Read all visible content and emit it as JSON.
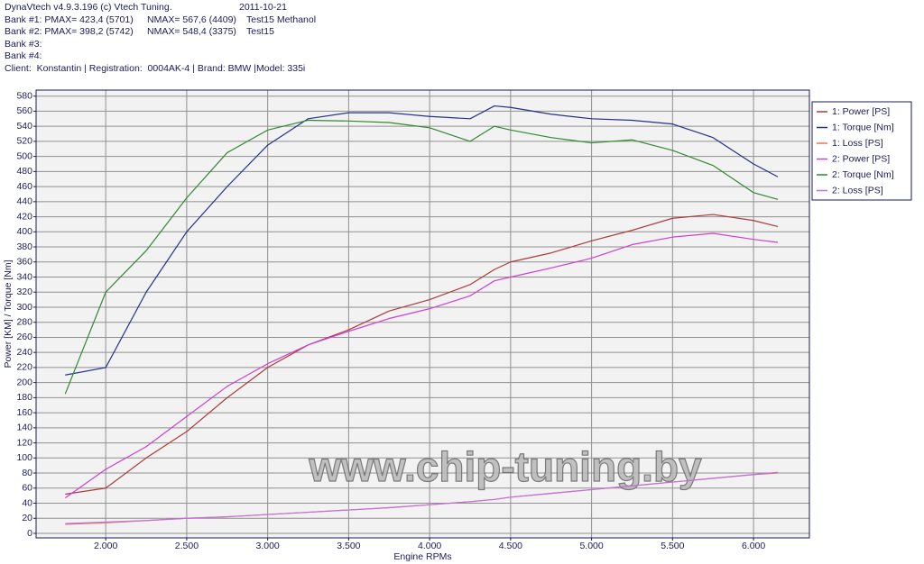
{
  "header": {
    "app": "DynaVtech v4.9.3.196 (c) Vtech Tuning.",
    "date": "2011-10-21",
    "banks": [
      [
        "Bank #1: PMAX= 423,4 (5701)",
        "NMAX= 567,6 (4409)",
        "Test15 Methanol"
      ],
      [
        "Bank #2: PMAX= 398,2 (5742)",
        "NMAX= 548,4 (3375)",
        "Test15"
      ],
      [
        "Bank #3:"
      ],
      [
        "Bank #4:"
      ]
    ],
    "client": "Client:  Konstantin | Registration:  0004AK-4 | Brand: BMW |Model: 335i"
  },
  "chart_data": {
    "type": "line",
    "x_label": "Engine RPMs",
    "y_label": "Power [KM] / Torque [Nm]",
    "watermark": "www.chip-tuning.by",
    "x": [
      1750,
      2000,
      2250,
      2500,
      2750,
      3000,
      3250,
      3500,
      3750,
      4000,
      4250,
      4400,
      4500,
      4750,
      5000,
      5250,
      5500,
      5750,
      6000,
      6150
    ],
    "series": [
      {
        "name": "1: Power [PS]",
        "color": "#b03a3a",
        "values": [
          52,
          60,
          100,
          135,
          180,
          220,
          250,
          270,
          295,
          310,
          330,
          350,
          360,
          372,
          388,
          402,
          418,
          423,
          415,
          407
        ]
      },
      {
        "name": "1: Torque [Nm]",
        "color": "#24308c",
        "values": [
          210,
          220,
          320,
          400,
          460,
          515,
          550,
          558,
          558,
          553,
          550,
          567,
          565,
          556,
          550,
          548,
          543,
          525,
          490,
          473
        ]
      },
      {
        "name": "1: Loss [PS]",
        "color": "#e07a50",
        "values": [
          12,
          14,
          17,
          20,
          22,
          25,
          28,
          31,
          34,
          38,
          42,
          45,
          48,
          53,
          58,
          63,
          68,
          73,
          78,
          80
        ]
      },
      {
        "name": "2: Power [PS]",
        "color": "#d040d0",
        "values": [
          47,
          85,
          115,
          155,
          195,
          225,
          250,
          268,
          285,
          298,
          315,
          335,
          340,
          352,
          365,
          383,
          393,
          398,
          390,
          386
        ]
      },
      {
        "name": "2: Torque [Nm]",
        "color": "#2e8a2e",
        "values": [
          185,
          320,
          375,
          445,
          505,
          535,
          548,
          547,
          545,
          538,
          520,
          540,
          535,
          525,
          518,
          522,
          508,
          488,
          452,
          443
        ]
      },
      {
        "name": "2: Loss [PS]",
        "color": "#c070e0",
        "values": [
          13,
          15,
          17,
          20,
          22,
          25,
          28,
          31,
          34,
          38,
          42,
          45,
          48,
          53,
          58,
          63,
          68,
          73,
          78,
          81
        ]
      }
    ],
    "xlim": [
      1570,
      6345
    ],
    "xticks": [
      {
        "value": 2000,
        "label": "2.000"
      },
      {
        "value": 2500,
        "label": "2.500"
      },
      {
        "value": 3000,
        "label": "3.000"
      },
      {
        "value": 3500,
        "label": "3.500"
      },
      {
        "value": 4000,
        "label": "4.000"
      },
      {
        "value": 4500,
        "label": "4.500"
      },
      {
        "value": 5000,
        "label": "5.000"
      },
      {
        "value": 5500,
        "label": "5.500"
      },
      {
        "value": 6000,
        "label": "6.000"
      }
    ],
    "ylim": [
      -6,
      588
    ],
    "yticks": [
      0,
      20,
      40,
      60,
      80,
      100,
      120,
      140,
      160,
      180,
      200,
      220,
      240,
      260,
      280,
      300,
      320,
      340,
      360,
      380,
      400,
      420,
      440,
      460,
      480,
      500,
      520,
      540,
      560,
      580
    ],
    "grid": true,
    "legend": "right"
  }
}
